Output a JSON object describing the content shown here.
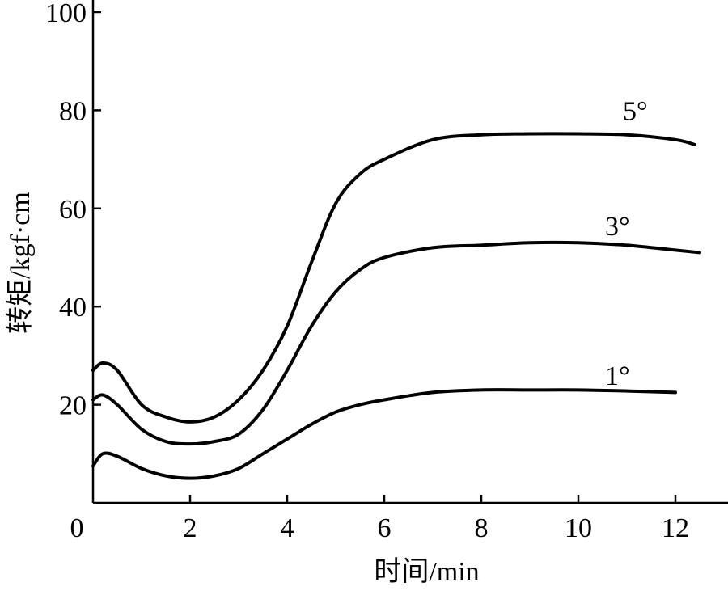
{
  "chart_data": {
    "type": "line",
    "xlabel": "时间/min",
    "ylabel": "转矩/kgf·cm",
    "xlim": [
      0,
      13
    ],
    "ylim": [
      0,
      100
    ],
    "x_ticks": [
      "2",
      "4",
      "6",
      "8",
      "10",
      "12"
    ],
    "y_ticks": [
      "20",
      "40",
      "60",
      "80",
      "100"
    ],
    "origin_label": "0",
    "grid": false,
    "series": [
      {
        "name": "5°",
        "x": [
          0,
          0.2,
          0.5,
          1,
          1.5,
          2,
          2.5,
          3,
          3.5,
          4,
          4.5,
          5,
          5.5,
          6,
          7,
          8,
          9,
          10,
          11,
          12,
          12.4
        ],
        "y": [
          27,
          28.5,
          27,
          20,
          17.5,
          16.5,
          17.5,
          21,
          27,
          36,
          49,
          61,
          67,
          70,
          74,
          75,
          75.2,
          75.2,
          75,
          74,
          73
        ]
      },
      {
        "name": "3°",
        "x": [
          0,
          0.2,
          0.5,
          1,
          1.5,
          2,
          2.5,
          3,
          3.5,
          4,
          4.5,
          5,
          5.5,
          6,
          7,
          8,
          9,
          10,
          11,
          12,
          12.5
        ],
        "y": [
          21,
          22,
          20,
          15,
          12.5,
          12,
          12.5,
          14,
          19,
          27,
          36,
          43,
          47.5,
          50,
          52,
          52.5,
          53,
          53,
          52.5,
          51.5,
          51
        ]
      },
      {
        "name": "1°",
        "x": [
          0,
          0.2,
          0.5,
          1,
          1.5,
          2,
          2.5,
          3,
          3.5,
          4,
          4.5,
          5,
          5.5,
          6,
          7,
          8,
          9,
          10,
          11,
          12
        ],
        "y": [
          7.5,
          10,
          9.5,
          7,
          5.5,
          5,
          5.5,
          7,
          10,
          13,
          16,
          18.5,
          20,
          21,
          22.5,
          23,
          23,
          23,
          22.8,
          22.5
        ]
      }
    ]
  }
}
